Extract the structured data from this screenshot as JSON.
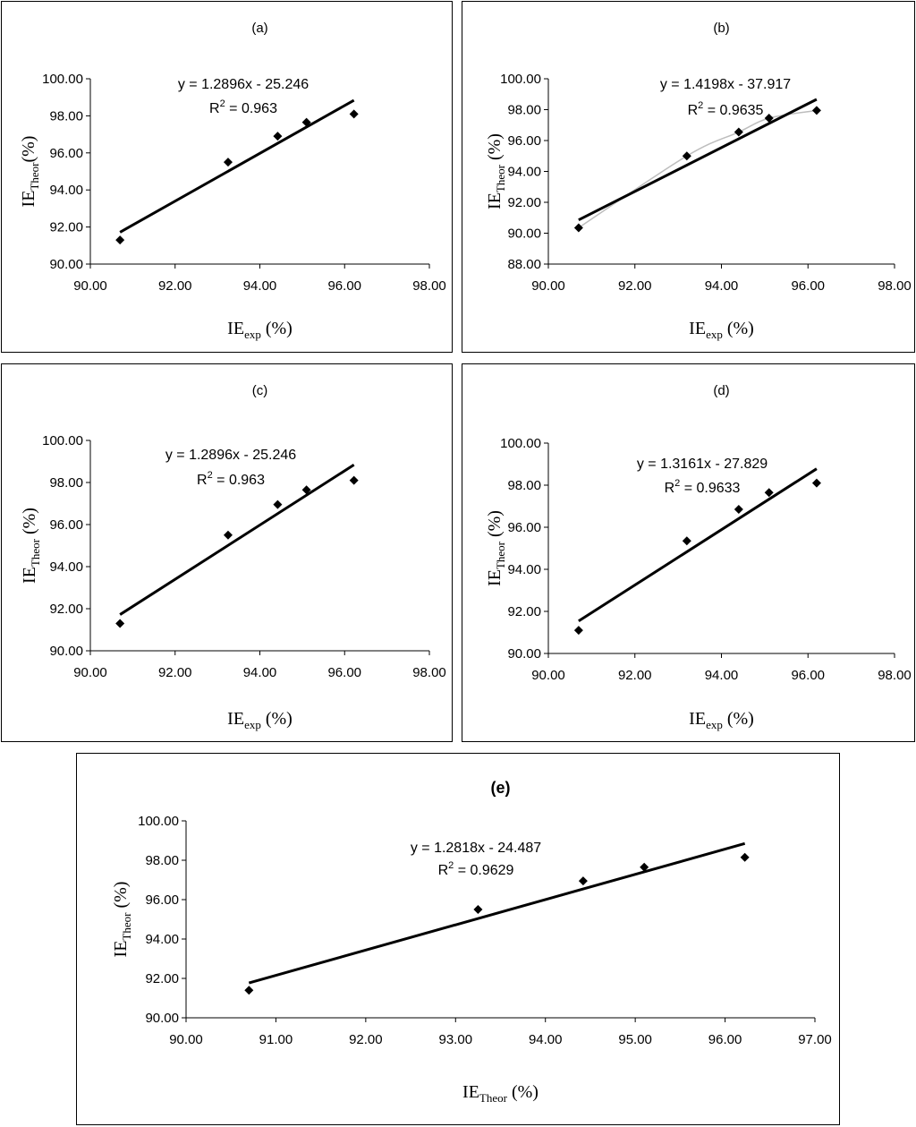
{
  "chart_data": [
    {
      "id": "a",
      "type": "scatter",
      "title": "(a)",
      "x": [
        90.7,
        93.25,
        94.42,
        95.1,
        96.22
      ],
      "y": [
        91.3,
        95.5,
        96.9,
        97.65,
        98.1
      ],
      "trendline": {
        "slope": 1.2896,
        "intercept": -25.246
      },
      "equation": "y = 1.2896x - 25.246",
      "r2_prefix": "R",
      "r2_sup": "2",
      "r2_value": " = 0.963",
      "xlim": [
        90,
        98
      ],
      "xticks": [
        "90.00",
        "92.00",
        "94.00",
        "96.00",
        "98.00"
      ],
      "ylim": [
        90,
        100
      ],
      "yticks": [
        "90.00",
        "92.00",
        "94.00",
        "96.00",
        "98.00",
        "100.00"
      ],
      "xlabel_main": "IE",
      "xlabel_sub": "exp",
      "xlabel_tail": " (%)",
      "ylabel_main": "IE",
      "ylabel_sub": "Theor",
      "ylabel_tail": "(%)"
    },
    {
      "id": "b",
      "type": "scatter",
      "title": "(b)",
      "x": [
        90.7,
        93.2,
        94.4,
        95.1,
        96.2
      ],
      "y": [
        90.35,
        95.0,
        96.55,
        97.45,
        97.95
      ],
      "smooth_line": true,
      "trendline": {
        "slope": 1.4198,
        "intercept": -37.917
      },
      "equation": "y = 1.4198x - 37.917",
      "r2_prefix": "R",
      "r2_sup": "2",
      "r2_value": " = 0.9635",
      "xlim": [
        90,
        98
      ],
      "xticks": [
        "90.00",
        "92.00",
        "94.00",
        "96.00",
        "98.00"
      ],
      "ylim": [
        88,
        100
      ],
      "yticks": [
        "88.00",
        "90.00",
        "92.00",
        "94.00",
        "96.00",
        "98.00",
        "100.00"
      ],
      "xlabel_main": "IE",
      "xlabel_sub": "exp",
      "xlabel_tail": " (%)",
      "ylabel_main": "IE",
      "ylabel_sub": "Theor",
      "ylabel_tail": " (%)"
    },
    {
      "id": "c",
      "type": "scatter",
      "title": "(c)",
      "x": [
        90.7,
        93.25,
        94.42,
        95.1,
        96.22
      ],
      "y": [
        91.3,
        95.5,
        96.95,
        97.65,
        98.1
      ],
      "trendline": {
        "slope": 1.2896,
        "intercept": -25.246
      },
      "equation": "y = 1.2896x - 25.246",
      "r2_prefix": "R",
      "r2_sup": "2",
      "r2_value": " = 0.963",
      "xlim": [
        90,
        98
      ],
      "xticks": [
        "90.00",
        "92.00",
        "94.00",
        "96.00",
        "98.00"
      ],
      "ylim": [
        90,
        100
      ],
      "yticks": [
        "90.00",
        "92.00",
        "94.00",
        "96.00",
        "98.00",
        "100.00"
      ],
      "xlabel_main": "IE",
      "xlabel_sub": "exp",
      "xlabel_tail": " (%)",
      "ylabel_main": "IE",
      "ylabel_sub": "Theor",
      "ylabel_tail": " (%)"
    },
    {
      "id": "d",
      "type": "scatter",
      "title": "(d)",
      "x": [
        90.7,
        93.2,
        94.4,
        95.1,
        96.2
      ],
      "y": [
        91.1,
        95.35,
        96.85,
        97.65,
        98.1
      ],
      "trendline": {
        "slope": 1.3161,
        "intercept": -27.829
      },
      "equation": "y = 1.3161x - 27.829",
      "r2_prefix": "R",
      "r2_sup": "2",
      "r2_value": " = 0.9633",
      "xlim": [
        90,
        98
      ],
      "xticks": [
        "90.00",
        "92.00",
        "94.00",
        "96.00",
        "98.00"
      ],
      "ylim": [
        90,
        100
      ],
      "yticks": [
        "90.00",
        "92.00",
        "94.00",
        "96.00",
        "98.00",
        "100.00"
      ],
      "xlabel_main": "IE",
      "xlabel_sub": "exp",
      "xlabel_tail": " (%)",
      "ylabel_main": "IE",
      "ylabel_sub": "Theor",
      "ylabel_tail": " (%)"
    },
    {
      "id": "e",
      "type": "scatter",
      "title": "(e)",
      "x": [
        90.7,
        93.25,
        94.42,
        95.1,
        96.22
      ],
      "y": [
        91.4,
        95.5,
        96.95,
        97.65,
        98.15
      ],
      "trendline": {
        "slope": 1.2818,
        "intercept": -24.487
      },
      "equation": "y = 1.2818x - 24.487",
      "r2_prefix": "R",
      "r2_sup": "2",
      "r2_value": " = 0.9629",
      "xlim": [
        90,
        97
      ],
      "xticks": [
        "90.00",
        "91.00",
        "92.00",
        "93.00",
        "94.00",
        "95.00",
        "96.00",
        "97.00"
      ],
      "ylim": [
        90,
        100
      ],
      "yticks": [
        "90.00",
        "92.00",
        "94.00",
        "96.00",
        "98.00",
        "100.00"
      ],
      "xlabel_main": "IE",
      "xlabel_sub": "Theor",
      "xlabel_tail": " (%)",
      "ylabel_main": "IE",
      "ylabel_sub": "Theor",
      "ylabel_tail": " (%)"
    }
  ]
}
